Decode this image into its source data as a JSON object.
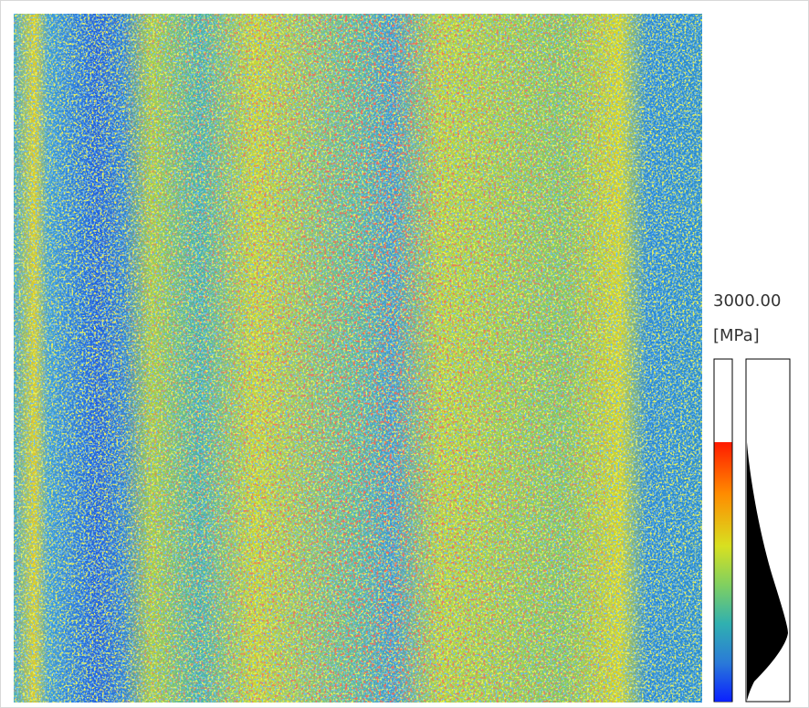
{
  "legend": {
    "max_label": "3000.00",
    "unit": "[MPa]"
  }
}
